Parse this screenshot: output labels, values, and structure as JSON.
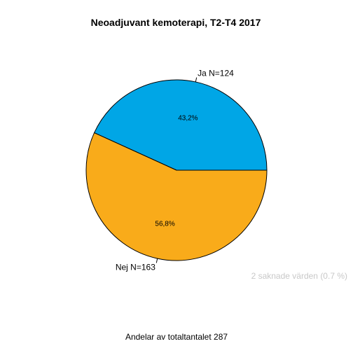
{
  "chart_data": {
    "type": "pie",
    "title": "Neoadjuvant kemoterapi, T2-T4  2017",
    "slices": [
      {
        "label": "Ja N=124",
        "value": 124,
        "percent_label": "43,2%",
        "color": "#00a6e6"
      },
      {
        "label": "Nej N=163",
        "value": 163,
        "percent_label": "56,8%",
        "color": "#f9ab1a"
      }
    ],
    "missing_note": "2 saknade värden (0.7 %)",
    "footer": "Andelar av totaltantalet 287"
  }
}
